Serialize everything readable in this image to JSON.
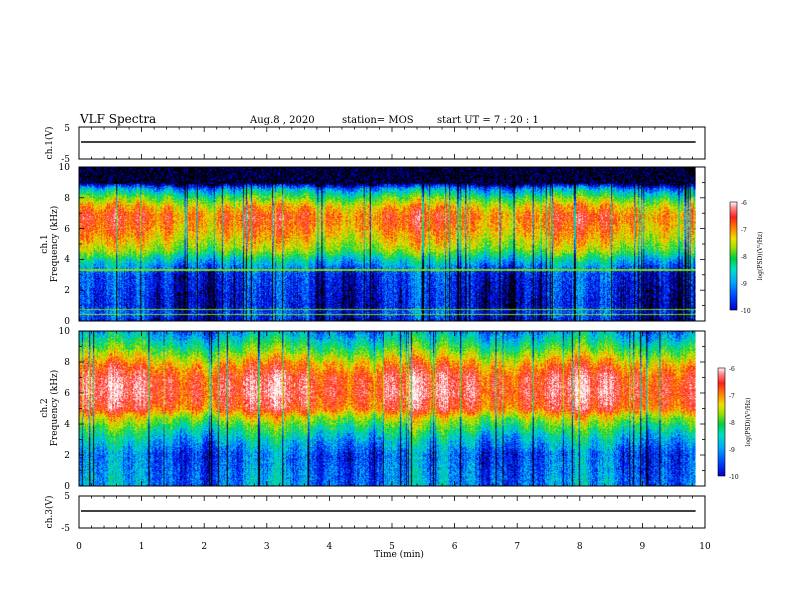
{
  "header": {
    "title": "VLF Spectra",
    "date": "Aug.8 , 2020",
    "station": "station= MOS",
    "start": "start UT = 7 : 20 : 1"
  },
  "colors": {
    "scale": [
      "#000000",
      "#0000c8",
      "#0040ff",
      "#00a8ff",
      "#00e0c0",
      "#00d040",
      "#a0e000",
      "#f0e000",
      "#ff8000",
      "#ff2020",
      "#ff9090",
      "#ffffff"
    ],
    "wave": "#000000"
  },
  "chart_data": [
    {
      "type": "line",
      "name": "ch.1 waveform",
      "ylabel": "ch.1(V)",
      "ylim": [
        -5,
        5
      ],
      "yticks": [
        "5",
        "-5"
      ],
      "x": [
        0,
        9.85
      ],
      "y": [
        0,
        0
      ]
    },
    {
      "type": "heatmap",
      "ylabel_line1": "ch.1",
      "ylabel_line2": "Frequency (kHz)",
      "ylim": [
        0,
        10
      ],
      "yticks": [
        "0",
        "2",
        "4",
        "6",
        "8",
        "10"
      ],
      "xlim": [
        0,
        10
      ],
      "data_extent_min": 9.85,
      "band_profile": [
        {
          "f": 0.0,
          "level": -9.9
        },
        {
          "f": 0.5,
          "level": -9.6
        },
        {
          "f": 1.0,
          "level": -9.9
        },
        {
          "f": 2.0,
          "level": -9.8
        },
        {
          "f": 3.0,
          "level": -9.7
        },
        {
          "f": 3.6,
          "level": -9.2
        },
        {
          "f": 4.0,
          "level": -8.8
        },
        {
          "f": 4.6,
          "level": -8.0
        },
        {
          "f": 5.2,
          "level": -7.6
        },
        {
          "f": 6.0,
          "level": -7.2
        },
        {
          "f": 6.8,
          "level": -7.0
        },
        {
          "f": 7.4,
          "level": -7.4
        },
        {
          "f": 8.0,
          "level": -8.2
        },
        {
          "f": 8.6,
          "level": -9.2
        },
        {
          "f": 9.0,
          "level": -10.5
        },
        {
          "f": 10.0,
          "level": -10.5
        }
      ],
      "lines_khz": [
        0.4,
        0.7,
        3.3
      ],
      "colorbar": {
        "label": "log(PSD)(V²/Hz)",
        "ticks": [
          "-6",
          "-7",
          "-8",
          "-9",
          "-10"
        ],
        "range": [
          -10,
          -6
        ]
      }
    },
    {
      "type": "heatmap",
      "ylabel_line1": "ch.2",
      "ylabel_line2": "Frequency (kHz)",
      "ylim": [
        0,
        10
      ],
      "yticks": [
        "0",
        "2",
        "4",
        "6",
        "8",
        "10"
      ],
      "xlim": [
        0,
        10
      ],
      "data_extent_min": 9.85,
      "band_profile": [
        {
          "f": 0.0,
          "level": -9.3
        },
        {
          "f": 1.0,
          "level": -9.4
        },
        {
          "f": 2.0,
          "level": -9.5
        },
        {
          "f": 3.0,
          "level": -9.0
        },
        {
          "f": 3.8,
          "level": -8.4
        },
        {
          "f": 4.4,
          "level": -7.8
        },
        {
          "f": 5.0,
          "level": -6.9
        },
        {
          "f": 6.0,
          "level": -6.6
        },
        {
          "f": 7.0,
          "level": -6.7
        },
        {
          "f": 7.8,
          "level": -7.2
        },
        {
          "f": 8.4,
          "level": -7.8
        },
        {
          "f": 9.0,
          "level": -8.4
        },
        {
          "f": 9.6,
          "level": -8.9
        },
        {
          "f": 10.0,
          "level": -9.2
        }
      ],
      "lines_khz": [],
      "colorbar": {
        "label": "log(PSD)(V²/Hz)",
        "ticks": [
          "-6",
          "-7",
          "-8",
          "-9",
          "-10"
        ],
        "range": [
          -10,
          -6
        ]
      }
    },
    {
      "type": "line",
      "name": "ch.3 waveform",
      "ylabel": "ch.3(V)",
      "ylim": [
        -5,
        5
      ],
      "yticks": [
        "5",
        "-5"
      ],
      "x": [
        0,
        9.85
      ],
      "y": [
        0,
        0
      ],
      "xlabel": "Time (min)",
      "xticks": [
        "0",
        "1",
        "2",
        "3",
        "4",
        "5",
        "6",
        "7",
        "8",
        "9",
        "10"
      ],
      "xlim": [
        0,
        10
      ]
    }
  ]
}
